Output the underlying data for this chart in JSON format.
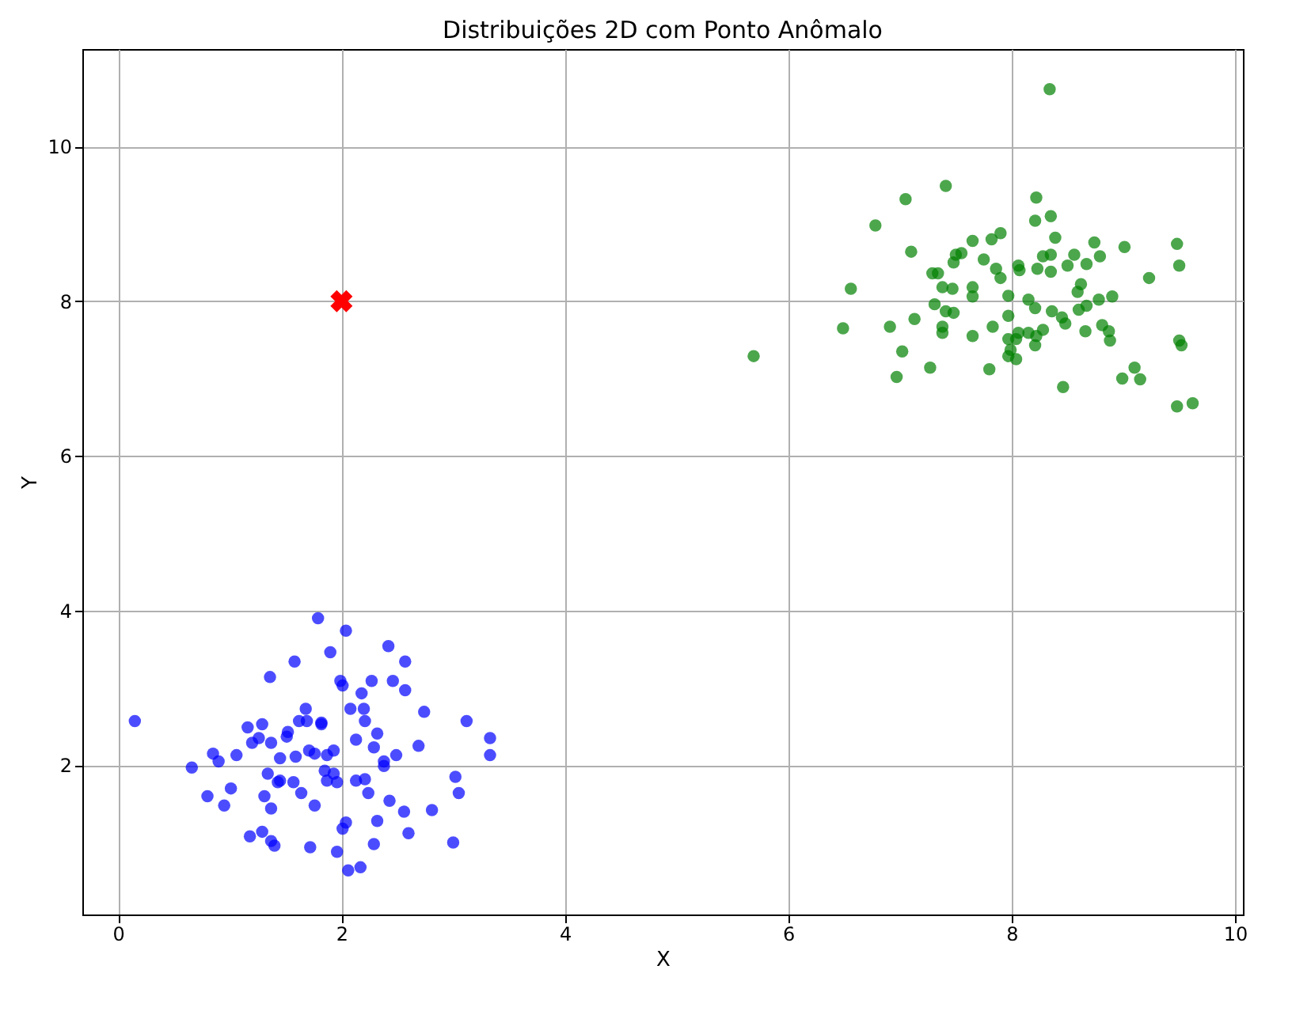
{
  "chart_data": {
    "type": "scatter",
    "title": "Distribuições 2D com Ponto Anômalo",
    "xlabel": "X",
    "ylabel": "Y",
    "xlim": [
      -0.32,
      10.07
    ],
    "ylim": [
      0.07,
      11.26
    ],
    "xticks": [
      0,
      2,
      4,
      6,
      8,
      10
    ],
    "yticks": [
      2,
      4,
      6,
      8,
      10
    ],
    "grid": true,
    "series": [
      {
        "color": "#0000ff",
        "marker": "circle",
        "x": [
          0.15,
          0.66,
          0.85,
          0.9,
          0.8,
          0.95,
          1.01,
          1.06,
          1.18,
          1.29,
          1.16,
          1.2,
          1.26,
          1.29,
          1.36,
          1.37,
          1.34,
          1.31,
          1.37,
          1.4,
          1.37,
          1.43,
          1.45,
          1.58,
          1.51,
          1.59,
          1.52,
          1.62,
          1.68,
          1.71,
          1.72,
          1.79,
          1.76,
          1.82,
          1.85,
          1.87,
          1.93,
          1.96,
          1.99,
          2.01,
          2.04,
          2.01,
          2.06,
          2.08,
          2.13,
          2.18,
          2.17,
          2.21,
          2.21,
          2.24,
          2.29,
          2.27,
          2.32,
          2.38,
          2.42,
          2.43,
          2.46,
          2.57,
          2.57,
          2.6,
          2.56,
          2.49,
          2.69,
          2.74,
          2.81,
          3.0,
          3.05,
          3.02,
          3.12,
          3.33,
          3.33,
          1.9,
          1.69,
          1.45,
          1.87,
          2.13,
          1.93,
          1.57,
          2.04,
          2.29,
          2.38,
          2.2,
          1.76,
          1.64,
          1.96,
          1.82,
          2.32
        ],
        "values": [
          2.57,
          1.97,
          2.15,
          2.05,
          1.6,
          1.48,
          1.7,
          2.13,
          1.08,
          1.14,
          2.49,
          2.29,
          2.35,
          2.53,
          3.14,
          2.29,
          1.89,
          1.6,
          1.44,
          0.96,
          1.02,
          1.78,
          2.09,
          3.34,
          2.37,
          2.11,
          2.43,
          2.57,
          2.73,
          2.19,
          0.94,
          3.9,
          1.48,
          2.55,
          1.93,
          2.13,
          2.19,
          1.78,
          3.09,
          3.03,
          3.74,
          1.18,
          0.64,
          2.73,
          2.33,
          2.93,
          0.68,
          2.57,
          1.82,
          1.64,
          0.98,
          3.09,
          2.41,
          1.99,
          3.54,
          1.54,
          3.09,
          3.34,
          2.97,
          1.12,
          1.4,
          2.13,
          2.25,
          2.69,
          1.42,
          1.0,
          1.64,
          1.85,
          2.57,
          2.35,
          2.13,
          3.46,
          2.57,
          1.8,
          1.8,
          1.8,
          1.89,
          1.78,
          1.26,
          2.23,
          2.05,
          2.73,
          2.15,
          1.64,
          0.88,
          2.53,
          1.28
        ]
      },
      {
        "color": "#008000",
        "marker": "circle",
        "x": [
          8.34,
          7.41,
          7.05,
          6.78,
          8.22,
          8.21,
          8.35,
          7.1,
          8.39,
          8.74,
          9.01,
          9.48,
          9.5,
          9.23,
          6.56,
          6.49,
          5.69,
          6.91,
          7.13,
          7.02,
          6.97,
          7.27,
          7.8,
          7.65,
          7.83,
          8.46,
          9.1,
          8.99,
          9.15,
          9.48,
          9.62,
          9.5,
          9.52,
          8.88,
          8.87,
          8.81,
          8.66,
          8.9,
          8.78,
          8.67,
          8.6,
          8.48,
          8.45,
          8.36,
          8.62,
          8.59,
          8.67,
          8.79,
          8.56,
          8.5,
          8.35,
          8.28,
          8.23,
          8.35,
          8.15,
          8.21,
          7.97,
          7.97,
          8.06,
          8.07,
          7.9,
          7.82,
          7.65,
          7.55,
          7.5,
          7.48,
          7.75,
          7.86,
          7.9,
          7.29,
          7.34,
          7.38,
          7.47,
          7.65,
          7.65,
          7.31,
          7.41,
          7.48,
          7.38,
          7.38,
          7.97,
          8.06,
          8.15,
          8.22,
          8.28,
          8.04,
          7.99,
          8.04,
          8.21,
          7.97
        ],
        "values": [
          10.74,
          9.49,
          9.32,
          8.98,
          9.34,
          9.04,
          9.1,
          8.64,
          8.82,
          8.76,
          8.7,
          8.74,
          8.46,
          8.3,
          8.16,
          7.65,
          7.29,
          7.67,
          7.77,
          7.35,
          7.02,
          7.14,
          7.12,
          7.55,
          7.67,
          6.89,
          7.14,
          7.0,
          6.99,
          6.64,
          6.68,
          7.49,
          7.43,
          7.49,
          7.61,
          7.69,
          7.61,
          8.06,
          8.02,
          7.94,
          7.89,
          7.71,
          7.79,
          7.87,
          8.22,
          8.12,
          8.48,
          8.58,
          8.6,
          8.46,
          8.6,
          8.58,
          8.42,
          8.38,
          8.02,
          7.91,
          8.07,
          7.81,
          8.46,
          8.4,
          8.88,
          8.8,
          8.78,
          8.62,
          8.6,
          8.5,
          8.54,
          8.42,
          8.3,
          8.36,
          8.36,
          8.18,
          8.16,
          8.18,
          8.06,
          7.96,
          7.87,
          7.85,
          7.67,
          7.59,
          7.51,
          7.59,
          7.59,
          7.55,
          7.63,
          7.51,
          7.37,
          7.25,
          7.43,
          7.29
        ]
      },
      {
        "color": "#ff0000",
        "marker": "cross",
        "x": [
          2
        ],
        "values": [
          8
        ]
      }
    ]
  }
}
